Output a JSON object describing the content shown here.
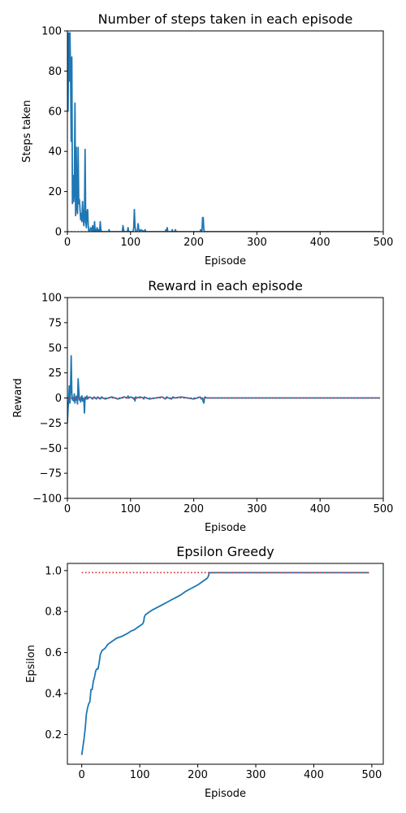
{
  "chart_data": [
    {
      "type": "line",
      "title": "Number of steps taken in each episode",
      "xlabel": "Episode",
      "ylabel": "Steps taken",
      "xlim": [
        0,
        500
      ],
      "ylim": [
        0,
        100
      ],
      "xticks": [
        0,
        100,
        200,
        300,
        400,
        500
      ],
      "yticks": [
        0,
        20,
        40,
        60,
        80,
        100
      ],
      "grid": false,
      "series": [
        {
          "color": "#1f77b4",
          "style": "solid",
          "x": [
            0,
            1,
            2,
            3,
            4,
            5,
            6,
            7,
            8,
            9,
            10,
            11,
            12,
            13,
            14,
            15,
            16,
            17,
            18,
            19,
            20,
            21,
            22,
            23,
            24,
            25,
            26,
            27,
            28,
            29,
            30,
            31,
            32,
            33,
            34,
            35,
            36,
            37,
            38,
            39,
            40,
            41,
            42,
            43,
            44,
            45,
            46,
            47,
            48,
            49,
            50,
            51,
            52,
            53,
            54,
            55,
            56,
            65,
            66,
            67,
            87,
            88,
            89,
            90,
            95,
            96,
            97,
            104,
            105,
            106,
            107,
            108,
            110,
            111,
            112,
            113,
            114,
            115,
            116,
            122,
            123,
            124,
            155,
            156,
            157,
            158,
            159,
            165,
            166,
            167,
            170,
            171,
            172,
            210,
            211,
            212,
            213,
            214,
            215,
            216,
            217,
            218,
            495
          ],
          "y": [
            99,
            60,
            99,
            75,
            99,
            80,
            45,
            87,
            14,
            28,
            15,
            20,
            64,
            8,
            42,
            12,
            9,
            42,
            14,
            16,
            11,
            6,
            9,
            5,
            15,
            8,
            3,
            7,
            41,
            5,
            2,
            10,
            11,
            3,
            0,
            0,
            1,
            2,
            1,
            0,
            3,
            1,
            0,
            5,
            0,
            1,
            0,
            2,
            1,
            0,
            1,
            0,
            5,
            1,
            0,
            0,
            0,
            0,
            1,
            0,
            0,
            3,
            1,
            0,
            0,
            2,
            0,
            0,
            2,
            11,
            3,
            0,
            0,
            1,
            4,
            1,
            0,
            0,
            1,
            0,
            1,
            0,
            0,
            1,
            0,
            2,
            0,
            0,
            1,
            0,
            0,
            1,
            0,
            0,
            1,
            0,
            0,
            7,
            7,
            1,
            0,
            0,
            0
          ]
        },
        {
          "color": "#d62728",
          "style": "dotted",
          "x": [
            0,
            495
          ],
          "y": [
            0,
            0
          ]
        }
      ]
    },
    {
      "type": "line",
      "title": "Reward in each episode",
      "xlabel": "Episode",
      "ylabel": "Reward",
      "xlim": [
        0,
        500
      ],
      "ylim": [
        -100,
        100
      ],
      "xticks": [
        0,
        100,
        200,
        300,
        400,
        500
      ],
      "yticks": [
        -100,
        -75,
        -50,
        -25,
        0,
        25,
        50,
        75,
        100
      ],
      "grid": false,
      "series": [
        {
          "color": "#1f77b4",
          "style": "solid",
          "x": [
            0,
            1,
            2,
            3,
            4,
            5,
            6,
            7,
            8,
            9,
            10,
            11,
            12,
            13,
            14,
            15,
            16,
            17,
            18,
            19,
            20,
            21,
            22,
            23,
            24,
            25,
            26,
            27,
            28,
            29,
            30,
            31,
            32,
            33,
            35,
            38,
            40,
            42,
            44,
            46,
            48,
            50,
            52,
            54,
            56,
            60,
            65,
            70,
            75,
            80,
            85,
            90,
            95,
            96,
            97,
            100,
            104,
            105,
            106,
            107,
            108,
            110,
            115,
            120,
            121,
            122,
            125,
            130,
            140,
            150,
            155,
            156,
            157,
            160,
            165,
            166,
            167,
            170,
            180,
            190,
            200,
            205,
            210,
            211,
            212,
            214,
            215,
            216,
            217,
            218,
            220,
            230,
            240,
            260,
            300,
            350,
            400,
            450,
            495
          ],
          "y": [
            -25,
            -10,
            -3,
            12,
            -5,
            10,
            42,
            5,
            -2,
            0,
            -3,
            4,
            -5,
            1,
            -2,
            2,
            -6,
            19,
            8,
            -2,
            0,
            -4,
            1,
            2,
            -3,
            0,
            -1,
            -15,
            1,
            0,
            -1,
            2,
            -1,
            0,
            1,
            0,
            -1,
            1,
            0,
            -1,
            1,
            0,
            -1,
            1,
            0,
            -1,
            0,
            1,
            0,
            -1,
            0,
            1,
            0,
            2,
            0,
            1,
            0,
            -1,
            0,
            -3,
            1,
            0,
            1,
            0,
            -1,
            1,
            0,
            -1,
            0,
            1,
            -1,
            0,
            1,
            0,
            -1,
            0,
            1,
            0,
            1,
            0,
            -1,
            0,
            1,
            0,
            -1,
            0,
            -4,
            -5,
            0,
            1,
            0,
            0,
            0,
            0,
            0,
            0,
            0,
            0,
            0
          ]
        },
        {
          "color": "#d62728",
          "style": "dotted",
          "x": [
            0,
            495
          ],
          "y": [
            0,
            0
          ]
        }
      ]
    },
    {
      "type": "line",
      "title": "Epsilon Greedy",
      "xlabel": "Episode",
      "ylabel": "Epsilon",
      "xlim": [
        -24.75,
        519.75
      ],
      "ylim": [
        0.055,
        1.035
      ],
      "xticks": [
        0,
        100,
        200,
        300,
        400,
        500
      ],
      "yticks": [
        0.2,
        0.4,
        0.6,
        0.8,
        1.0
      ],
      "ytick_labels": [
        "0.2",
        "0.4",
        "0.6",
        "0.8",
        "1.0"
      ],
      "grid": false,
      "series": [
        {
          "color": "#1f77b4",
          "style": "solid",
          "x": [
            0,
            2,
            4,
            6,
            8,
            10,
            12,
            14,
            16,
            18,
            20,
            22,
            24,
            26,
            28,
            30,
            32,
            35,
            40,
            45,
            50,
            55,
            60,
            70,
            80,
            85,
            90,
            95,
            100,
            105,
            106,
            107,
            108,
            110,
            115,
            120,
            130,
            140,
            150,
            155,
            160,
            170,
            180,
            190,
            200,
            210,
            216,
            218,
            220,
            230,
            240,
            260,
            300,
            350,
            400,
            450,
            495
          ],
          "y": [
            0.1,
            0.14,
            0.18,
            0.23,
            0.3,
            0.33,
            0.35,
            0.36,
            0.42,
            0.42,
            0.46,
            0.48,
            0.51,
            0.52,
            0.52,
            0.55,
            0.59,
            0.61,
            0.62,
            0.64,
            0.65,
            0.66,
            0.67,
            0.68,
            0.695,
            0.705,
            0.71,
            0.72,
            0.73,
            0.74,
            0.745,
            0.755,
            0.775,
            0.785,
            0.795,
            0.805,
            0.82,
            0.835,
            0.85,
            0.858,
            0.865,
            0.88,
            0.9,
            0.915,
            0.93,
            0.95,
            0.962,
            0.97,
            0.99,
            0.99,
            0.99,
            0.99,
            0.99,
            0.99,
            0.99,
            0.99,
            0.99
          ]
        },
        {
          "color": "#d62728",
          "style": "dotted",
          "x": [
            0,
            495
          ],
          "y": [
            0.99,
            0.99
          ]
        }
      ]
    }
  ]
}
